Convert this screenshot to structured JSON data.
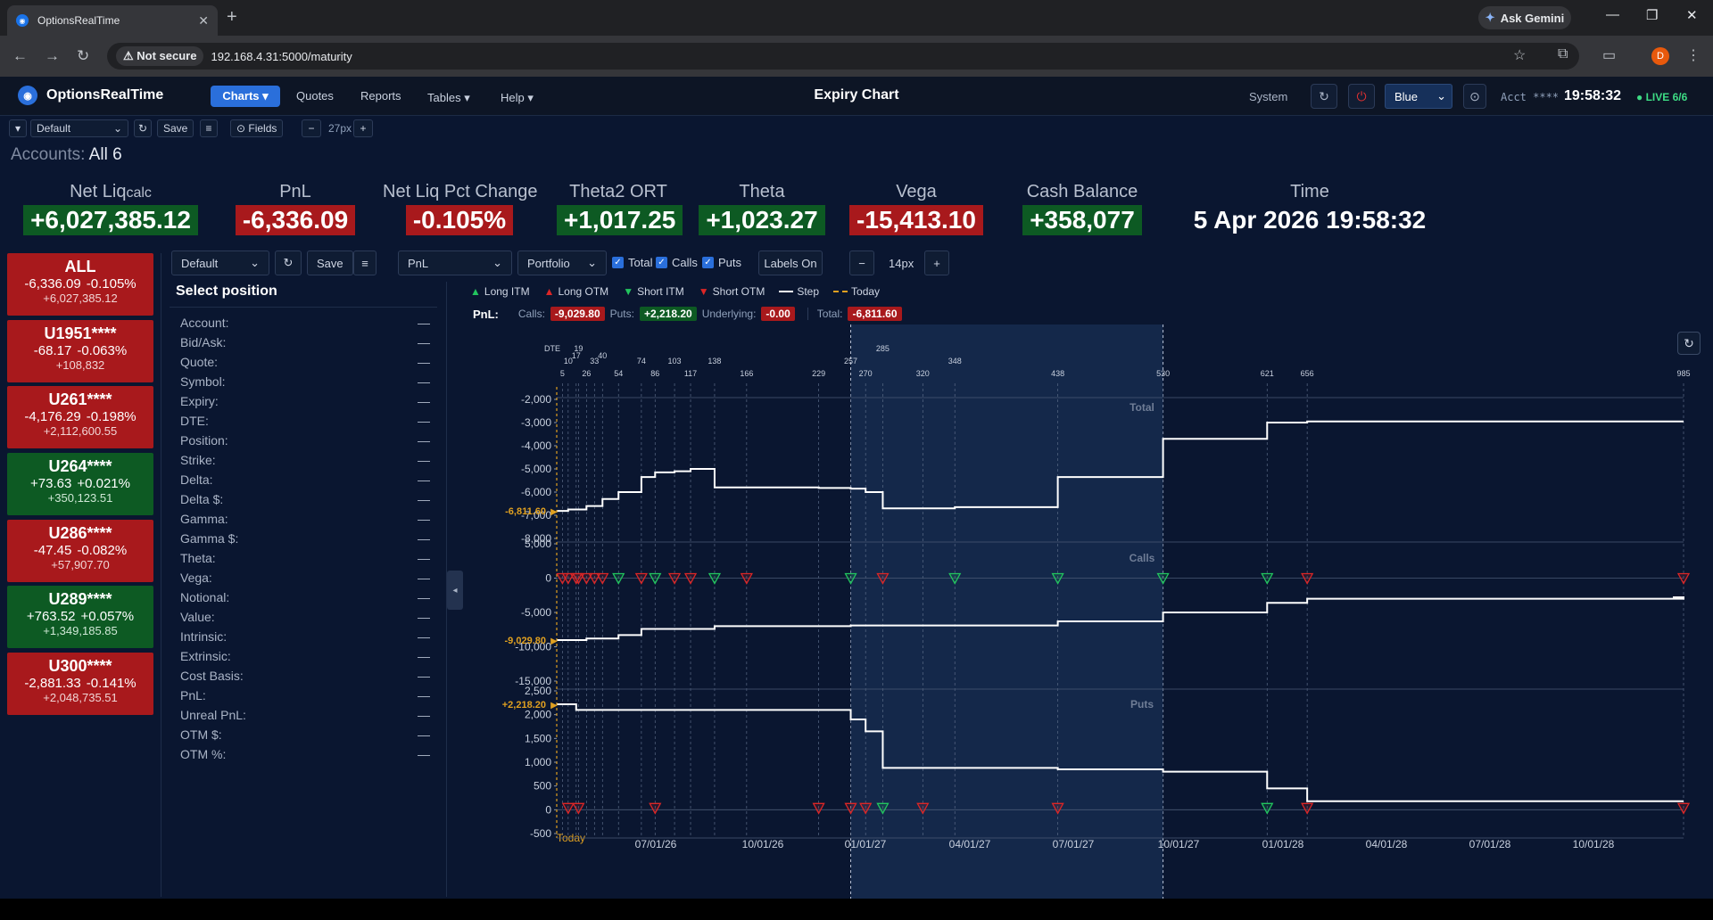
{
  "browser": {
    "tab_title": "OptionsRealTime",
    "new_tab": "+",
    "gemini": "Ask Gemini",
    "not_secure": "Not secure",
    "url": "192.168.4.31:5000/maturity",
    "profile_initial": "D"
  },
  "app": {
    "name": "OptionsRealTime",
    "nav": {
      "charts": "Charts ▾",
      "quotes": "Quotes",
      "reports": "Reports",
      "tables": "Tables ▾",
      "help": "Help ▾"
    },
    "page_title": "Expiry Chart",
    "system": "System",
    "theme": "Blue",
    "acct": "Acct ****",
    "clock": "19:58:32",
    "live": "● LIVE 6/6"
  },
  "toolbar": {
    "layout": "Default",
    "save": "Save",
    "fields": "⊙ Fields",
    "minus": "−",
    "size": "27px",
    "plus": "+"
  },
  "accounts_label": "Accounts:",
  "accounts_value": "All 6",
  "metrics": [
    {
      "label": "Net Liq",
      "sub": "calc",
      "value": "+6,027,385.12",
      "tone": "pos"
    },
    {
      "label": "PnL",
      "sub": "",
      "value": "-6,336.09",
      "tone": "neg"
    },
    {
      "label": "Net Liq Pct Change",
      "sub": "",
      "value": "-0.105%",
      "tone": "neg"
    },
    {
      "label": "Theta2 ORT",
      "sub": "",
      "value": "+1,017.25",
      "tone": "pos"
    },
    {
      "label": "Theta",
      "sub": "",
      "value": "+1,023.27",
      "tone": "pos"
    },
    {
      "label": "Vega",
      "sub": "",
      "value": "-15,413.10",
      "tone": "neg"
    },
    {
      "label": "Cash Balance",
      "sub": "",
      "value": "+358,077",
      "tone": "pos"
    }
  ],
  "time_label": "Time",
  "time_value": "5 Apr 2026 19:58:32",
  "accounts": [
    {
      "name": "ALL",
      "pnl": "-6,336.09",
      "pct": "-0.105%",
      "netliq": "+6,027,385.12",
      "tone": "neg"
    },
    {
      "name": "U1951****",
      "pnl": "-68.17",
      "pct": "-0.063%",
      "netliq": "+108,832",
      "tone": "neg"
    },
    {
      "name": "U261****",
      "pnl": "-4,176.29",
      "pct": "-0.198%",
      "netliq": "+2,112,600.55",
      "tone": "neg"
    },
    {
      "name": "U264****",
      "pnl": "+73.63",
      "pct": "+0.021%",
      "netliq": "+350,123.51",
      "tone": "pos"
    },
    {
      "name": "U286****",
      "pnl": "-47.45",
      "pct": "-0.082%",
      "netliq": "+57,907.70",
      "tone": "neg"
    },
    {
      "name": "U289****",
      "pnl": "+763.52",
      "pct": "+0.057%",
      "netliq": "+1,349,185.85",
      "tone": "pos"
    },
    {
      "name": "U300****",
      "pnl": "-2,881.33",
      "pct": "-0.141%",
      "netliq": "+2,048,735.51",
      "tone": "neg"
    }
  ],
  "controls": {
    "layout": "Default",
    "save": "Save",
    "metric": "PnL",
    "scope": "Portfolio",
    "total": "Total",
    "calls": "Calls",
    "puts": "Puts",
    "labels": "Labels On",
    "minus": "−",
    "size": "14px",
    "plus": "+"
  },
  "position": {
    "title": "Select position",
    "fields": [
      "Account:",
      "Bid/Ask:",
      "Quote:",
      "Symbol:",
      "Expiry:",
      "DTE:",
      "Position:",
      "Strike:",
      "Delta:",
      "Delta $:",
      "Gamma:",
      "Gamma $:",
      "Theta:",
      "Vega:",
      "Notional:",
      "Value:",
      "Intrinsic:",
      "Extrinsic:",
      "Cost Basis:",
      "PnL:",
      "Unreal PnL:",
      "OTM $:",
      "OTM %:"
    ],
    "empty": "—"
  },
  "legend": {
    "long_itm": "Long ITM",
    "long_otm": "Long OTM",
    "short_itm": "Short ITM",
    "short_otm": "Short OTM",
    "step": "Step",
    "today": "Today"
  },
  "pnl_row": {
    "label": "PnL:",
    "calls_label": "Calls:",
    "calls": "-9,029.80",
    "puts_label": "Puts:",
    "puts": "+2,218.20",
    "und_label": "Underlying:",
    "und": "-0.00",
    "total_label": "Total:",
    "total": "-6,811.60"
  },
  "colors": {
    "neg": "#a8191c",
    "pos": "#0d5a23",
    "accent": "#2a6fdb",
    "today": "#e0a020",
    "itm": "#22c55e",
    "otm": "#dc2626"
  },
  "chart_data": {
    "type": "line",
    "dte_label": "DTE",
    "dte_ticks": [
      5,
      10,
      17,
      19,
      26,
      33,
      40,
      54,
      74,
      86,
      103,
      117,
      138,
      166,
      229,
      257,
      270,
      285,
      320,
      348,
      438,
      530,
      621,
      656,
      985
    ],
    "x_labels": [
      "Today",
      "07/01/26",
      "10/01/26",
      "01/01/27",
      "04/01/27",
      "07/01/27",
      "10/01/27",
      "01/01/28",
      "04/01/28",
      "07/01/28",
      "10/01/28"
    ],
    "panels": [
      {
        "name": "Total",
        "y_ticks": [
          -2000,
          -3000,
          -4000,
          -5000,
          -6000,
          -7000,
          -8000
        ],
        "ylim": [
          -8000,
          -2000
        ],
        "current_label": "-6,811.60",
        "current": -6811.6,
        "step": [
          [
            0,
            -6811.6
          ],
          [
            10,
            -6750
          ],
          [
            26,
            -6600
          ],
          [
            40,
            -6300
          ],
          [
            54,
            -6000
          ],
          [
            74,
            -5350
          ],
          [
            86,
            -5150
          ],
          [
            103,
            -5100
          ],
          [
            117,
            -5000
          ],
          [
            138,
            -5800
          ],
          [
            229,
            -5820
          ],
          [
            257,
            -5850
          ],
          [
            270,
            -6000
          ],
          [
            285,
            -6700
          ],
          [
            348,
            -6650
          ],
          [
            438,
            -5350
          ],
          [
            530,
            -3700
          ],
          [
            621,
            -3000
          ],
          [
            656,
            -2950
          ],
          [
            985,
            -2950
          ]
        ]
      },
      {
        "name": "Calls",
        "y_ticks": [
          5000,
          0,
          -5000,
          -10000,
          -15000
        ],
        "ylim": [
          -15000,
          5000
        ],
        "current_label": "-9,029.80",
        "current": -9029.8,
        "step": [
          [
            0,
            -9029.8
          ],
          [
            26,
            -8800
          ],
          [
            54,
            -8300
          ],
          [
            74,
            -7400
          ],
          [
            138,
            -7000
          ],
          [
            257,
            -6900
          ],
          [
            438,
            -6300
          ],
          [
            530,
            -5000
          ],
          [
            621,
            -3600
          ],
          [
            656,
            -3000
          ],
          [
            985,
            -2800
          ]
        ]
      },
      {
        "name": "Puts",
        "y_ticks": [
          2500,
          2000,
          1500,
          1000,
          500,
          0,
          -500
        ],
        "ylim": [
          -500,
          2500
        ],
        "current_label": "+2,218.20",
        "current": 2218.2,
        "step": [
          [
            0,
            2218.2
          ],
          [
            17,
            2100
          ],
          [
            257,
            1900
          ],
          [
            270,
            1650
          ],
          [
            285,
            880
          ],
          [
            438,
            850
          ],
          [
            530,
            800
          ],
          [
            621,
            450
          ],
          [
            656,
            180
          ],
          [
            985,
            180
          ]
        ]
      }
    ],
    "call_markers": [
      [
        5,
        "otm"
      ],
      [
        10,
        "otm"
      ],
      [
        17,
        "otm"
      ],
      [
        19,
        "otm"
      ],
      [
        26,
        "otm"
      ],
      [
        33,
        "otm"
      ],
      [
        40,
        "otm"
      ],
      [
        54,
        "itm"
      ],
      [
        74,
        "otm"
      ],
      [
        86,
        "itm"
      ],
      [
        103,
        "otm"
      ],
      [
        117,
        "otm"
      ],
      [
        138,
        "itm"
      ],
      [
        166,
        "otm"
      ],
      [
        257,
        "itm"
      ],
      [
        285,
        "otm"
      ],
      [
        348,
        "itm"
      ],
      [
        438,
        "itm"
      ],
      [
        530,
        "itm"
      ],
      [
        621,
        "itm"
      ],
      [
        656,
        "otm"
      ],
      [
        985,
        "otm"
      ]
    ],
    "put_markers": [
      [
        10,
        "otm"
      ],
      [
        19,
        "otm"
      ],
      [
        86,
        "otm"
      ],
      [
        229,
        "otm"
      ],
      [
        257,
        "otm"
      ],
      [
        270,
        "otm"
      ],
      [
        285,
        "itm"
      ],
      [
        320,
        "otm"
      ],
      [
        438,
        "otm"
      ],
      [
        621,
        "itm"
      ],
      [
        656,
        "otm"
      ],
      [
        985,
        "otm"
      ]
    ]
  }
}
